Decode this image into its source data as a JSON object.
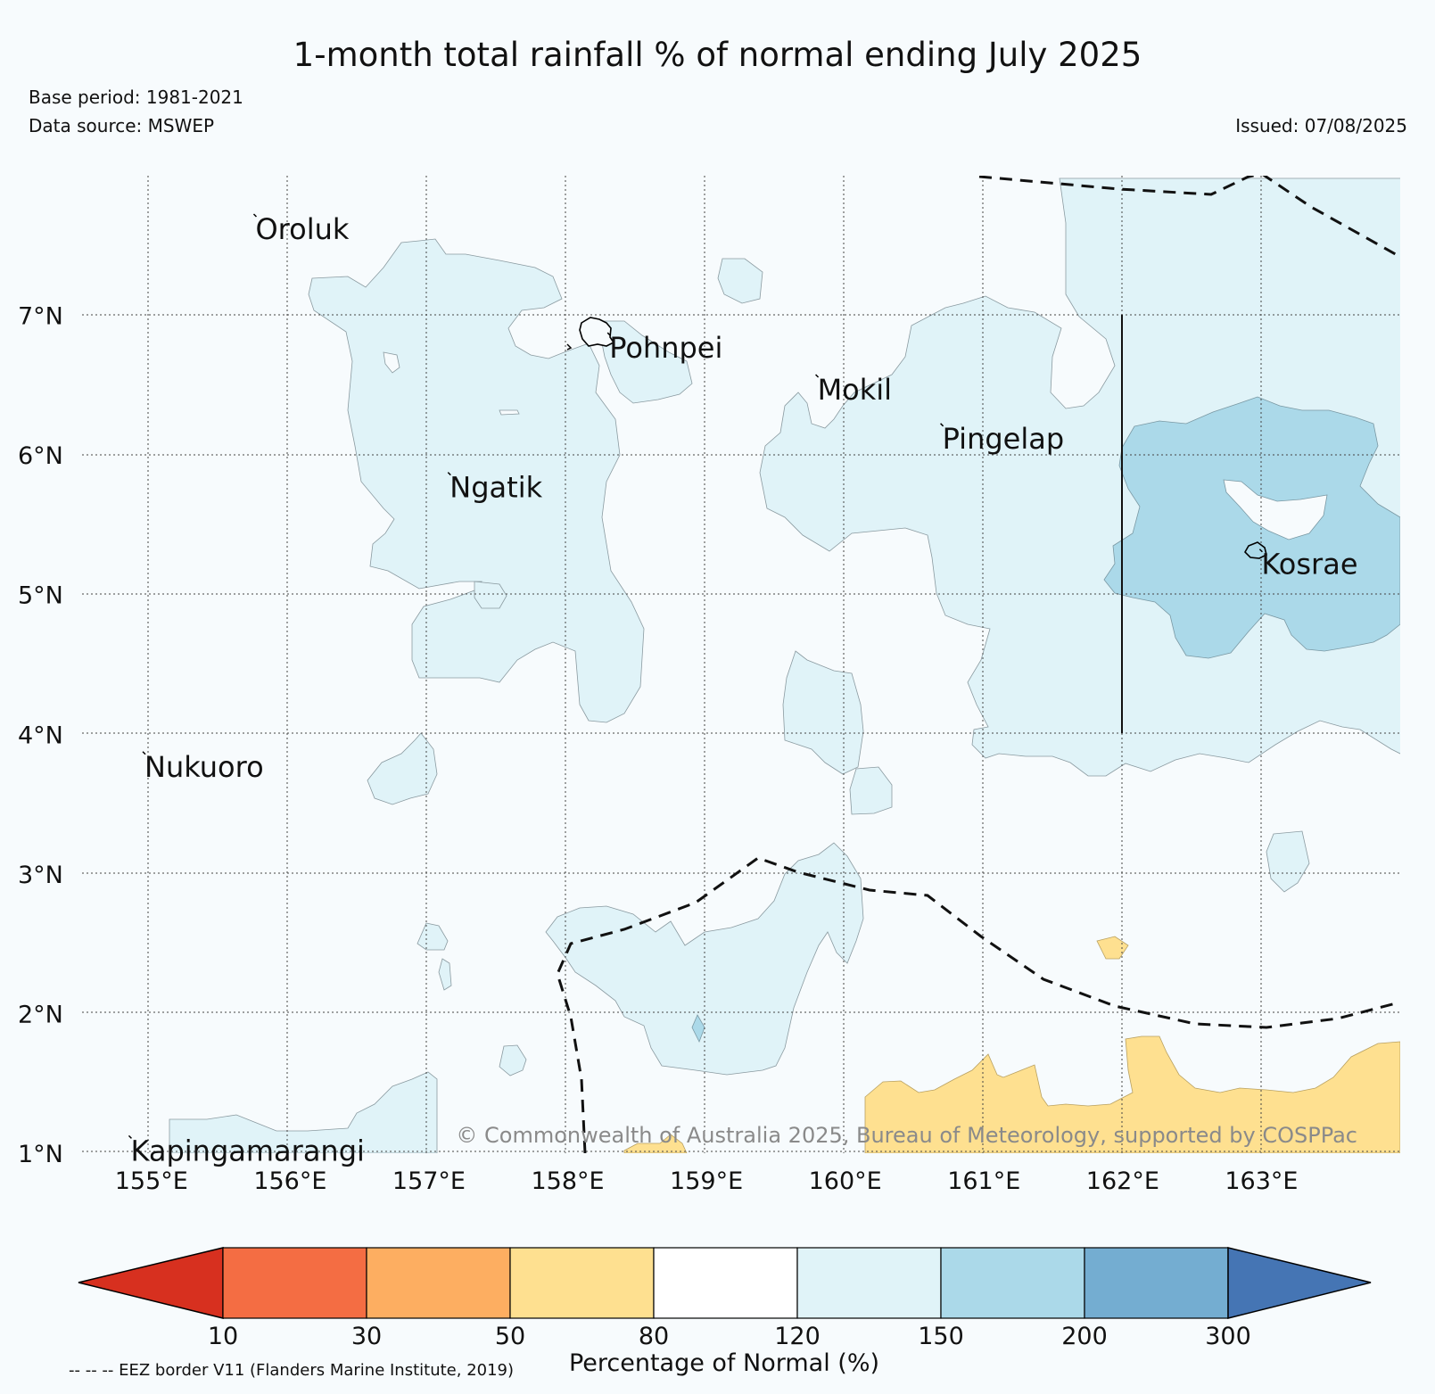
{
  "title": "1-month total rainfall % of normal ending July 2025",
  "base_period": "Base period: 1981-2021",
  "data_source": "Data source: MSWEP",
  "issued": "Issued: 07/08/2025",
  "map": {
    "extent": {
      "lon_min": 154.5,
      "lon_max": 164.0,
      "lat_min": 1.0,
      "lat_max": 8.0
    },
    "lat_ticks": [
      {
        "value": 7,
        "label": "7°N"
      },
      {
        "value": 6,
        "label": "6°N"
      },
      {
        "value": 5,
        "label": "5°N"
      },
      {
        "value": 4,
        "label": "4°N"
      },
      {
        "value": 3,
        "label": "3°N"
      },
      {
        "value": 2,
        "label": "2°N"
      },
      {
        "value": 1,
        "label": "1°N"
      }
    ],
    "lon_ticks": [
      {
        "value": 155,
        "label": "155°E"
      },
      {
        "value": 156,
        "label": "156°E"
      },
      {
        "value": 157,
        "label": "157°E"
      },
      {
        "value": 158,
        "label": "158°E"
      },
      {
        "value": 159,
        "label": "159°E"
      },
      {
        "value": 160,
        "label": "160°E"
      },
      {
        "value": 161,
        "label": "161°E"
      },
      {
        "value": 162,
        "label": "162°E"
      },
      {
        "value": 163,
        "label": "163°E"
      }
    ],
    "places": [
      {
        "name": "Oroluk",
        "lon": 155.75,
        "lat": 7.7
      },
      {
        "name": "Pohnpei",
        "lon": 158.3,
        "lat": 6.85
      },
      {
        "name": "Mokil",
        "lon": 159.8,
        "lat": 6.55
      },
      {
        "name": "Pingelap",
        "lon": 160.7,
        "lat": 6.2
      },
      {
        "name": "Ngatik",
        "lon": 157.15,
        "lat": 5.85
      },
      {
        "name": "Kosrae",
        "lon": 163.0,
        "lat": 5.3
      },
      {
        "name": "Nukuoro",
        "lon": 154.95,
        "lat": 3.85
      },
      {
        "name": "Kapingamarangi",
        "lon": 154.85,
        "lat": 1.1
      }
    ],
    "copyright": "© Commonwealth of Australia 2025, Bureau of Meteorology, supported by COSPPac"
  },
  "colorbar": {
    "title": "Percentage of Normal (%)",
    "boundaries": [
      "10",
      "30",
      "50",
      "80",
      "120",
      "150",
      "200",
      "300"
    ],
    "colors": {
      "below_10": "#d7301f",
      "10_30": "#f46d43",
      "30_50": "#fdae61",
      "50_80": "#fee090",
      "80_120": "#ffffff",
      "120_150": "#e0f3f8",
      "150_200": "#abd9e9",
      "200_300": "#74add1",
      "above_300": "#4575b4"
    }
  },
  "eez_note": "-- -- -- EEZ border V11 (Flanders Marine Institute, 2019)"
}
